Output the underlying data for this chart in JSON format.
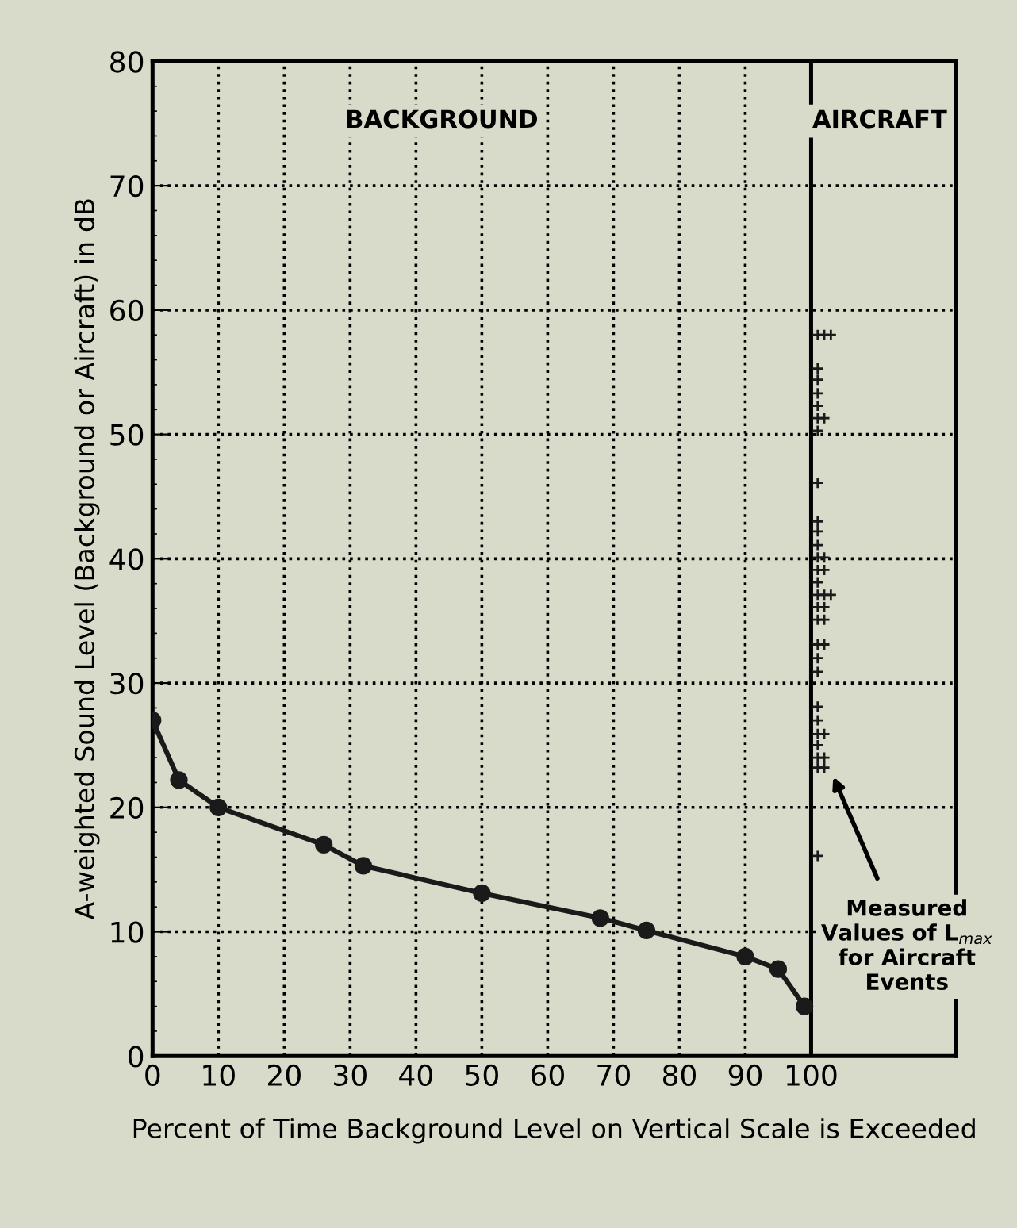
{
  "chart_data": {
    "type": "line",
    "xlabel": "Percent of Time Background Level on Vertical Scale is Exceeded",
    "ylabel": "A-weighted Sound Level (Background or Aircraft) in dB",
    "xlim": [
      0,
      122
    ],
    "ylim": [
      0,
      80
    ],
    "xticks": [
      0,
      10,
      20,
      30,
      40,
      50,
      60,
      70,
      80,
      90,
      100
    ],
    "yticks": [
      0,
      10,
      20,
      30,
      40,
      50,
      60,
      70,
      80
    ],
    "grid": true,
    "line_style": "solid",
    "ref_lines": [
      {
        "axis": "x",
        "value": 100,
        "label": null,
        "color": "#000000",
        "line_style": "solid"
      }
    ],
    "annotations": [
      "BACKGROUND",
      "AIRCRAFT",
      "Measured Values of L$_{max}$ for Aircraft Events"
    ],
    "series": [
      {
        "color": "#1a1a1a",
        "marker": "circle",
        "x": [
          0,
          4,
          10,
          26,
          32,
          50,
          68,
          75,
          90,
          95,
          99
        ],
        "values": [
          27,
          22.2,
          20,
          17,
          15.3,
          13.1,
          11.1,
          10.1,
          8,
          7,
          4
        ]
      },
      {
        "type": "scatter",
        "color": "#1a1a1a",
        "marker": "cross",
        "x": [
          101,
          102,
          103,
          101,
          101,
          101,
          101,
          101,
          102,
          101,
          101,
          101,
          101,
          101,
          101,
          102,
          101,
          102,
          101,
          101,
          102,
          103,
          101,
          102,
          101,
          102,
          101,
          102,
          101,
          101,
          101,
          101,
          101,
          102,
          101,
          101,
          102,
          101,
          102,
          101
        ],
        "values": [
          58,
          58,
          58,
          55.3,
          54.4,
          53.3,
          52.3,
          51.3,
          51.3,
          50.3,
          46.1,
          43,
          42.2,
          41.1,
          40.1,
          40.1,
          39.1,
          39.1,
          38.1,
          37.1,
          37.1,
          37.1,
          36.1,
          36.1,
          35.1,
          35.1,
          33.1,
          33.1,
          32,
          30.9,
          28.1,
          27,
          25.9,
          25.9,
          25,
          24,
          24,
          23.2,
          23.2,
          16.1
        ]
      }
    ]
  }
}
